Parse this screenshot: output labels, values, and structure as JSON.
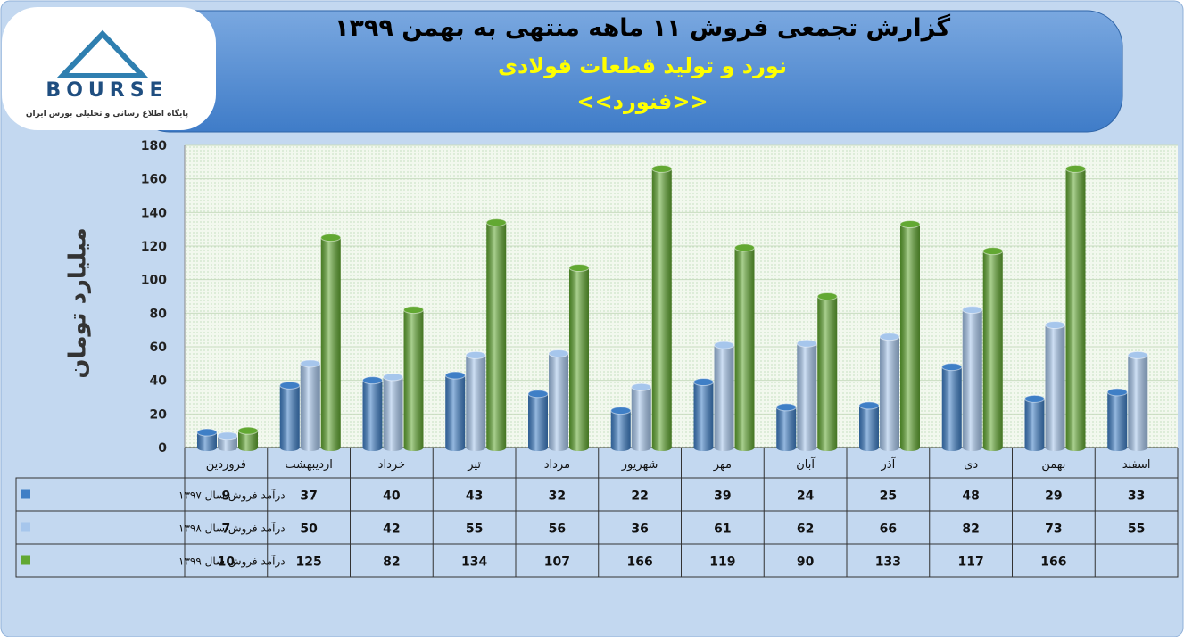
{
  "logo": {
    "text": "BOURSE",
    "subtitle": "پایگاه اطلاع رسانی و تحلیلی بورس ایران"
  },
  "chart_data": {
    "type": "bar",
    "title": "گزارش تجمعی فروش ۱۱ ماهه منتهی به بهمن ۱۳۹۹",
    "subtitle": "نورد و تولید قطعات فولادی",
    "symbol": "<<فنورد>>",
    "y_label": "میلیارد تومان",
    "categories": [
      "فروردین",
      "اردیبهشت",
      "خرداد",
      "تیر",
      "مرداد",
      "شهریور",
      "مهر",
      "آبان",
      "آذر",
      "دی",
      "بهمن",
      "اسفند"
    ],
    "series": [
      {
        "name": "درآمد فروش سال ۱۳۹۷",
        "color": "#3f7fc6",
        "values": [
          9,
          37,
          40,
          43,
          32,
          22,
          39,
          24,
          25,
          48,
          29,
          33
        ]
      },
      {
        "name": "درآمد فروش سال ۱۳۹۸",
        "color": "#a6c6ec",
        "values": [
          7,
          50,
          42,
          55,
          56,
          36,
          61,
          62,
          66,
          82,
          73,
          55
        ]
      },
      {
        "name": "درآمد فروش سال ۱۳۹۹",
        "color": "#62a832",
        "values": [
          10,
          125,
          82,
          134,
          107,
          166,
          119,
          90,
          133,
          117,
          166,
          null
        ]
      }
    ],
    "ylim": [
      0,
      180
    ],
    "yticks": [
      0,
      20,
      40,
      60,
      80,
      100,
      120,
      140,
      160,
      180
    ],
    "grid": true
  }
}
